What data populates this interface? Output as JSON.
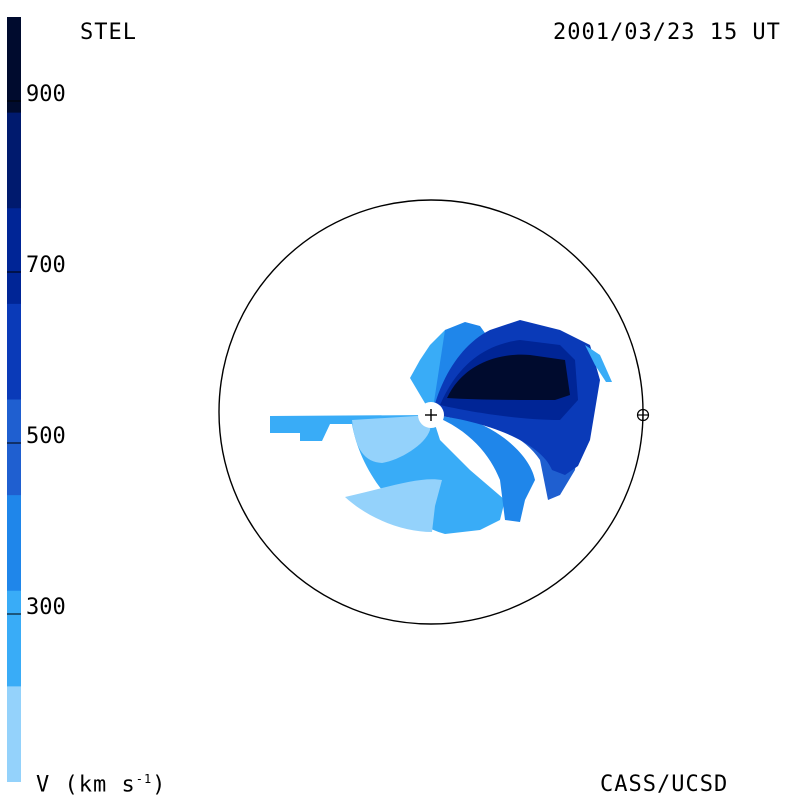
{
  "header": {
    "instrument": "STEL",
    "timestamp": "2001/03/23 15 UT"
  },
  "footer": {
    "quantity_prefix": "V (km s",
    "quantity_exp": "-1",
    "quantity_suffix": ")",
    "credit": "CASS/UCSD"
  },
  "colorbar": {
    "tick_labels": [
      "900",
      "700",
      "500",
      "300"
    ],
    "levels": [
      "#000b2e",
      "#001a6e",
      "#002596",
      "#0a3ab8",
      "#1f5fd0",
      "#1f86ea",
      "#39acf7",
      "#94d2fb"
    ]
  },
  "map": {
    "center_marker": "+",
    "earth_marker": "earth-symbol"
  }
}
